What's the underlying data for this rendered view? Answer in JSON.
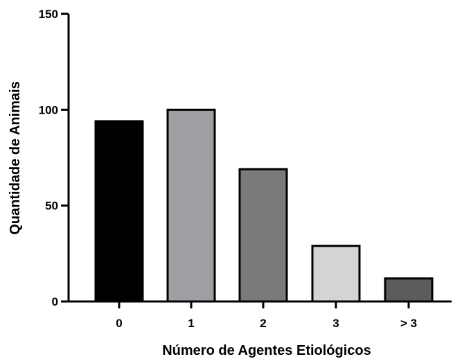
{
  "chart_data": {
    "type": "bar",
    "title": "",
    "xlabel": "Número de Agentes Etiológicos",
    "ylabel": "Quantidade de Animais",
    "categories": [
      "0",
      "1",
      "2",
      "3",
      "> 3"
    ],
    "values": [
      94,
      100,
      69,
      29,
      12
    ],
    "bar_colors": [
      "#000000",
      "#9e9ea3",
      "#7a7a7a",
      "#d4d4d4",
      "#5c5c5c"
    ],
    "ylim": [
      0,
      150
    ],
    "yticks": [
      0,
      50,
      100,
      150
    ],
    "grid": false,
    "legend": "none"
  }
}
